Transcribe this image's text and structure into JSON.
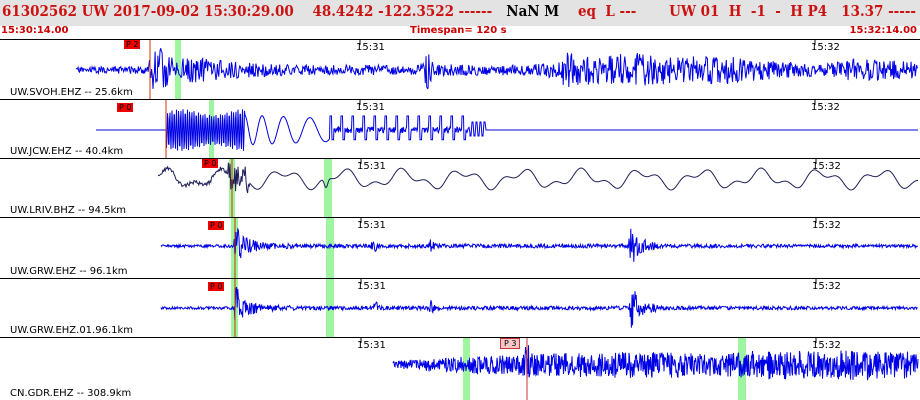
{
  "header": {
    "line_prefix": "61302562 UW 2017-09-02 15:30:29.00    48.4242 -122.3522 ------   ",
    "magnitude": "NaN M",
    "line_suffix": "    eq  L ---       UW 01  H  -1  -  H P4   13.37 -----"
  },
  "time_left": "15:30:14.00",
  "timespan_label": "Timespan= 120 s",
  "time_right": "15:32:14.00",
  "colors": {
    "trace_blue": "#0000e6",
    "trace_dark": "#1e1e5a",
    "pick_red": "#ee0000",
    "pick_pale": "#f8c8c8",
    "highlight_green": "#9ff59f",
    "header_red": "#cc1111",
    "header_bg": "#e3e3e3"
  },
  "panels": [
    {
      "channel": "UW.SVOH.EHZ -- 25.6km",
      "trace_color": "trace_blue",
      "tick_labels": [
        "15:31",
        "15:32"
      ],
      "pick_label": "P 2",
      "pick_style": "red",
      "waveform": "svoh"
    },
    {
      "channel": "UW.JCW.EHZ -- 40.4km",
      "trace_color": "trace_blue",
      "tick_labels": [
        "15:31",
        "15:32"
      ],
      "pick_label": "P 0",
      "pick_style": "red",
      "waveform": "jcw"
    },
    {
      "channel": "UW.LRIV.BHZ -- 94.5km",
      "trace_color": "trace_dark",
      "tick_labels": [
        "15:31",
        "15:32"
      ],
      "pick_label": "P 0",
      "pick_style": "red",
      "waveform": "lriv"
    },
    {
      "channel": "UW.GRW.EHZ -- 96.1km",
      "trace_color": "trace_blue",
      "tick_labels": [
        "15:31",
        "15:32"
      ],
      "pick_label": "P 0",
      "pick_style": "red",
      "waveform": "grw"
    },
    {
      "channel": "UW.GRW.EHZ.01.96.1km",
      "trace_color": "trace_blue",
      "tick_labels": [
        "15:31",
        "15:32"
      ],
      "pick_label": "P 0",
      "pick_style": "red",
      "waveform": "grw01"
    },
    {
      "channel": "CN.GDR.EHZ -- 308.9km",
      "trace_color": "trace_blue",
      "tick_labels": [
        "15:31",
        "15:32"
      ],
      "pick_label": "P 3",
      "pick_style": "pale",
      "waveform": "gdr"
    }
  ]
}
